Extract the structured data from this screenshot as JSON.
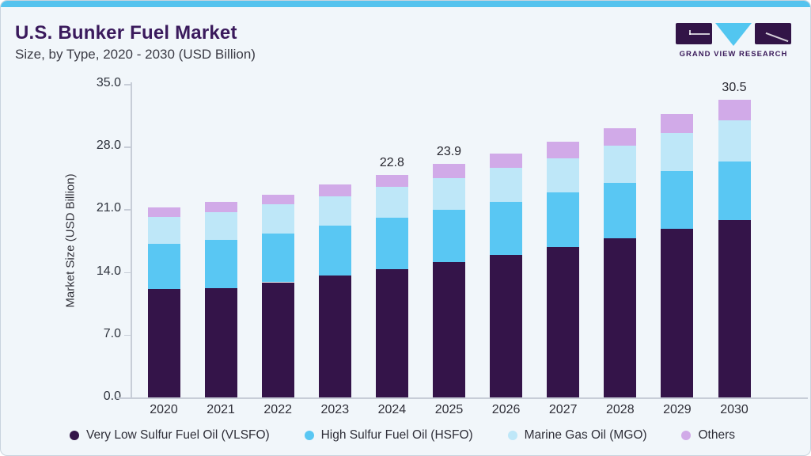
{
  "header": {
    "title": "U.S. Bunker Fuel Market",
    "subtitle": "Size, by Type, 2020 - 2030 (USD Billion)"
  },
  "logo": {
    "brand": "GRAND VIEW RESEARCH"
  },
  "chart_data": {
    "type": "bar",
    "stacked": true,
    "title": "U.S. Bunker Fuel Market",
    "subtitle": "Size, by Type, 2020 - 2030 (USD Billion)",
    "categories": [
      "2020",
      "2021",
      "2022",
      "2023",
      "2024",
      "2025",
      "2026",
      "2027",
      "2028",
      "2029",
      "2030"
    ],
    "series": [
      {
        "name": "Very Low Sulfur Fuel Oil (VLSFO)",
        "color": "#341449",
        "values": [
          11.1,
          11.2,
          11.8,
          12.5,
          13.1,
          13.9,
          14.6,
          15.4,
          16.3,
          17.3,
          18.2
        ]
      },
      {
        "name": "High Sulfur Fuel Oil (HSFO)",
        "color": "#59c7f3",
        "values": [
          4.6,
          4.9,
          5.0,
          5.1,
          5.3,
          5.3,
          5.4,
          5.6,
          5.7,
          5.9,
          6.0
        ]
      },
      {
        "name": "Marine Gas Oil (MGO)",
        "color": "#bee7f8",
        "values": [
          2.8,
          2.9,
          3.0,
          3.0,
          3.2,
          3.3,
          3.5,
          3.5,
          3.8,
          3.9,
          4.2
        ]
      },
      {
        "name": "Others",
        "color": "#d1aae8",
        "values": [
          1.0,
          1.0,
          1.0,
          1.2,
          1.2,
          1.4,
          1.5,
          1.7,
          1.8,
          1.9,
          2.1
        ]
      }
    ],
    "data_labels": {
      "2024": "22.8",
      "2025": "23.9",
      "2030": "30.5"
    },
    "ylabel": "Market Size (USD Billion)",
    "yticks": [
      "0.0",
      "7.0",
      "14.0",
      "21.0",
      "28.0",
      "35.0"
    ],
    "ylim": [
      0,
      35
    ],
    "grid": false,
    "legend_position": "bottom",
    "accent_color": "#55c3ee",
    "title_color": "#3a1a5c",
    "background_color": "#f1f6fa"
  }
}
